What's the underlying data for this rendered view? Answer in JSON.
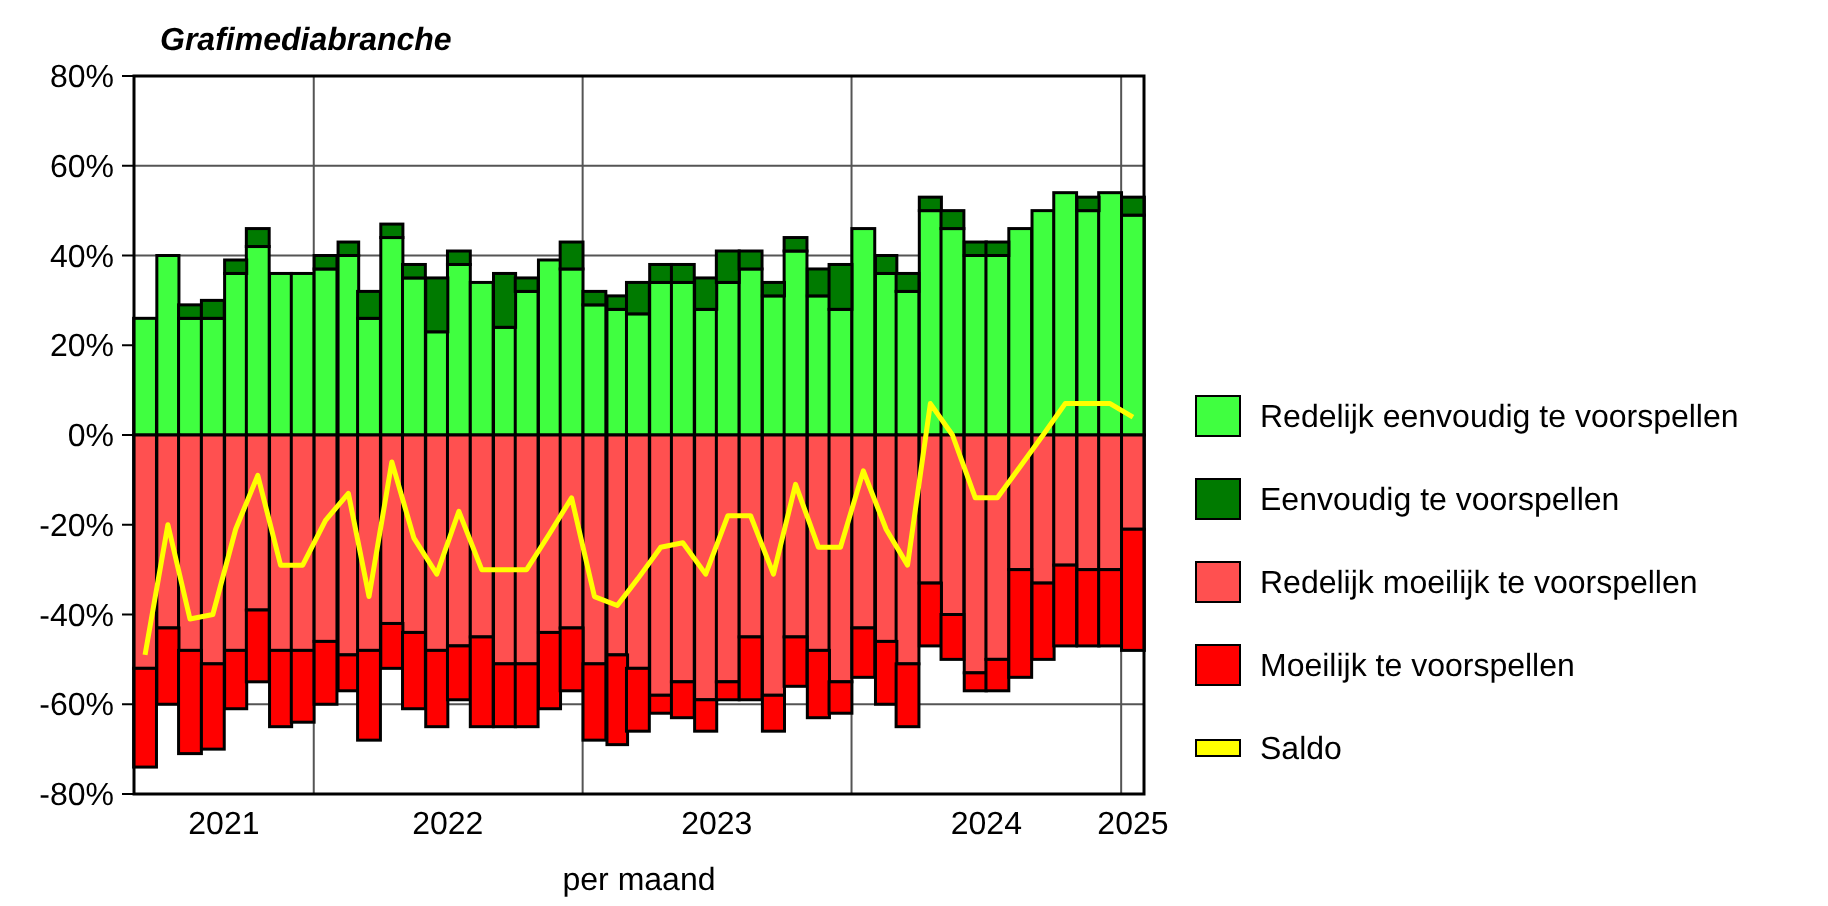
{
  "chart_data": {
    "type": "bar",
    "title": "Grafimediabranche",
    "xlabel": "per maand",
    "stacked": true,
    "x": [
      "2021-05",
      "2021-06",
      "2021-07",
      "2021-08",
      "2021-09",
      "2021-10",
      "2021-11",
      "2021-12",
      "2022-01",
      "2022-02",
      "2022-03",
      "2022-04",
      "2022-05",
      "2022-06",
      "2022-07",
      "2022-08",
      "2022-09",
      "2022-10",
      "2022-11",
      "2022-12",
      "2023-01",
      "2023-02",
      "2023-03",
      "2023-04",
      "2023-05",
      "2023-06",
      "2023-07",
      "2023-08",
      "2023-09",
      "2023-10",
      "2023-11",
      "2023-12",
      "2024-01",
      "2024-02",
      "2024-03",
      "2024-04",
      "2024-05",
      "2024-06",
      "2024-07",
      "2024-08",
      "2024-09",
      "2024-10",
      "2024-11",
      "2024-12",
      "2025-01"
    ],
    "series": [
      {
        "name": "Redelijk eenvoudig te voorspellen",
        "color": "#40ff40",
        "values": [
          26,
          40,
          26,
          26,
          36,
          42,
          36,
          36,
          37,
          40,
          26,
          44,
          35,
          23,
          38,
          34,
          24,
          32,
          39,
          37,
          29,
          28,
          27,
          34,
          34,
          28,
          34,
          37,
          31,
          41,
          31,
          28,
          46,
          36,
          32,
          50,
          46,
          40,
          40,
          46,
          50,
          54,
          50,
          54,
          49
        ]
      },
      {
        "name": "Eenvoudig te voorspellen",
        "color": "#007a00",
        "values": [
          0,
          0,
          3,
          4,
          3,
          4,
          0,
          0,
          3,
          3,
          6,
          3,
          3,
          12,
          3,
          0,
          12,
          3,
          0,
          6,
          3,
          3,
          7,
          4,
          4,
          7,
          7,
          4,
          3,
          3,
          6,
          10,
          0,
          4,
          4,
          3,
          4,
          3,
          3,
          0,
          0,
          0,
          3,
          0,
          4
        ]
      },
      {
        "name": "Redelijk moeilijk te voorspellen",
        "color": "#ff5050",
        "values": [
          -52,
          -43,
          -48,
          -51,
          -48,
          -39,
          -48,
          -48,
          -46,
          -49,
          -48,
          -42,
          -44,
          -48,
          -47,
          -45,
          -51,
          -51,
          -44,
          -43,
          -51,
          -49,
          -52,
          -58,
          -55,
          -59,
          -55,
          -45,
          -58,
          -45,
          -48,
          -55,
          -43,
          -46,
          -51,
          -33,
          -40,
          -53,
          -50,
          -30,
          -33,
          -29,
          -30,
          -30,
          -21
        ]
      },
      {
        "name": "Moeilijk te voorspellen",
        "color": "#ff0000",
        "values": [
          -22,
          -17,
          -23,
          -19,
          -13,
          -16,
          -17,
          -16,
          -14,
          -8,
          -20,
          -10,
          -17,
          -17,
          -12,
          -20,
          -14,
          -14,
          -17,
          -14,
          -17,
          -20,
          -14,
          -4,
          -8,
          -7,
          -4,
          -14,
          -8,
          -11,
          -15,
          -7,
          -11,
          -14,
          -14,
          -14,
          -10,
          -4,
          -7,
          -24,
          -17,
          -18,
          -17,
          -17,
          -27
        ]
      },
      {
        "name": "Saldo",
        "type": "line",
        "color": "#ffff00",
        "values": [
          -49,
          -20,
          -41,
          -40,
          -21,
          -9,
          -29,
          -29,
          -19,
          -13,
          -36,
          -6,
          -23,
          -31,
          -17,
          -30,
          -30,
          -30,
          -22,
          -14,
          -36,
          -38,
          -32,
          -25,
          -24,
          -31,
          -18,
          -18,
          -31,
          -11,
          -25,
          -25,
          -8,
          -21,
          -29,
          7,
          0,
          -14,
          -14,
          -7,
          0,
          7,
          7,
          7,
          4
        ]
      }
    ],
    "xlim": [
      "2021-04-16",
      "2025-01-16"
    ],
    "xticks": [
      {
        "value": "2021-08-16",
        "label": "2021"
      },
      {
        "value": "2021-12-16",
        "label": null
      },
      {
        "value": "2022-06-16",
        "label": "2022"
      },
      {
        "value": "2022-12-16",
        "label": null
      },
      {
        "value": "2023-06-16",
        "label": "2023"
      },
      {
        "value": "2023-12-16",
        "label": null
      },
      {
        "value": "2024-06-16",
        "label": "2024"
      },
      {
        "value": "2024-12-16",
        "label": null
      },
      {
        "value": "2025-01-01",
        "label": "2025"
      }
    ],
    "ylim": [
      -80,
      80
    ],
    "yticks": [
      {
        "value": -80,
        "label": "-80%"
      },
      {
        "value": -60,
        "label": "-60%"
      },
      {
        "value": -40,
        "label": "-40%"
      },
      {
        "value": -20,
        "label": "-20%"
      },
      {
        "value": 0,
        "label": "0%"
      },
      {
        "value": 20,
        "label": "20%"
      },
      {
        "value": 40,
        "label": "40%"
      },
      {
        "value": 60,
        "label": "60%"
      },
      {
        "value": 80,
        "label": "80%"
      }
    ],
    "grid": true,
    "legend": "right"
  }
}
